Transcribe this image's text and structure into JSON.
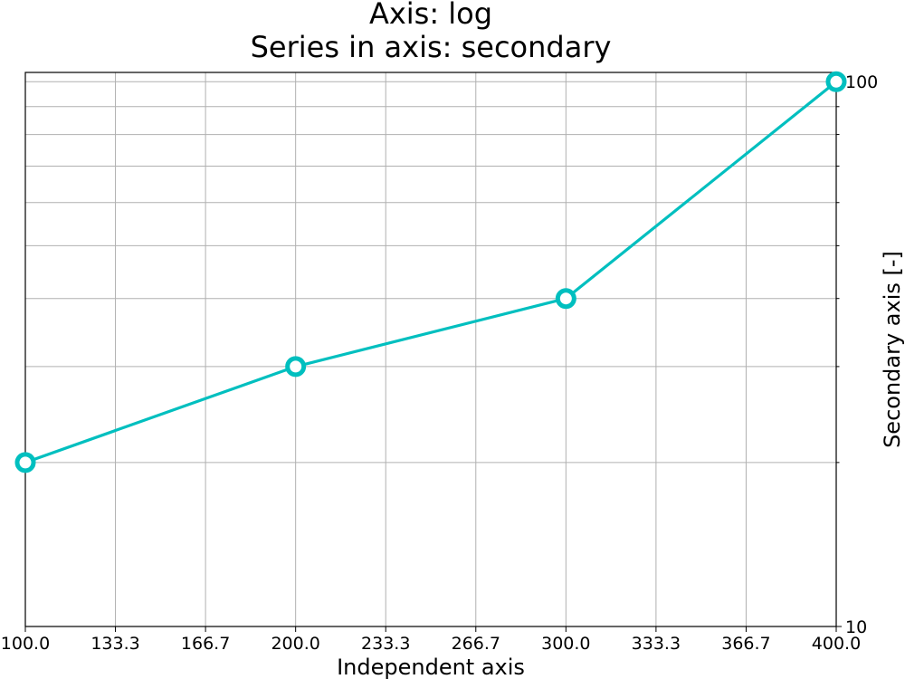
{
  "chart_data": {
    "type": "line",
    "title_lines": [
      "Axis: log",
      "Series in axis: secondary"
    ],
    "xlabel": "Independent axis",
    "ylabel": "Secondary axis [-]",
    "x_ticks": [
      "100.0",
      "133.3",
      "166.7",
      "200.0",
      "233.3",
      "266.7",
      "300.0",
      "333.3",
      "366.7",
      "400.0"
    ],
    "y_ticks": [
      "10",
      "100"
    ],
    "xlim": [
      100,
      400
    ],
    "ylim": [
      10,
      100
    ],
    "y_scale": "log",
    "y_axis_side": "right",
    "grid": true,
    "series": [
      {
        "color": "#00bfbf",
        "marker": "hollow-circle",
        "x": [
          100,
          200,
          300,
          400
        ],
        "y": [
          20,
          30,
          40,
          100
        ]
      }
    ]
  }
}
